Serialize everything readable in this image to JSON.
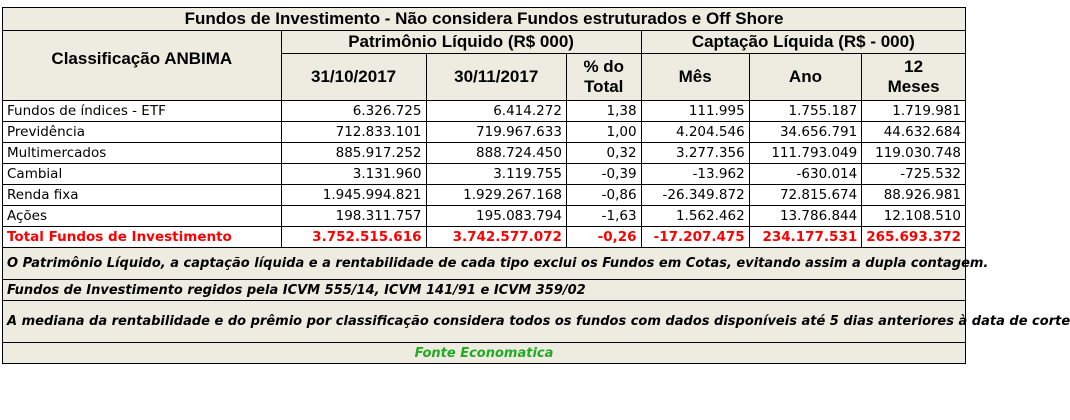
{
  "title": "Fundos de Investimento - Não considera Fundos estruturados e Off Shore",
  "header": {
    "classification_label": "Classificação ANBIMA",
    "pl_group": "Patrimônio Líquido (R$ 000)",
    "cap_group": "Captação Líquida (R$ - 000)",
    "col_date1": "31/10/2017",
    "col_date2": "30/11/2017",
    "col_pct_line1": "% do",
    "col_pct_line2": "Total",
    "col_mes": "Mês",
    "col_ano": "Ano",
    "col_12m_line1": "12",
    "col_12m_line2": "Meses"
  },
  "rows": [
    {
      "name": "Fundos de índices - ETF",
      "pl_oct": "6.326.725",
      "pl_nov": "6.414.272",
      "pct": "1,38",
      "mes": "111.995",
      "ano": "1.755.187",
      "m12": "1.719.981"
    },
    {
      "name": "Previdência",
      "pl_oct": "712.833.101",
      "pl_nov": "719.967.633",
      "pct": "1,00",
      "mes": "4.204.546",
      "ano": "34.656.791",
      "m12": "44.632.684"
    },
    {
      "name": "Multimercados",
      "pl_oct": "885.917.252",
      "pl_nov": "888.724.450",
      "pct": "0,32",
      "mes": "3.277.356",
      "ano": "111.793.049",
      "m12": "119.030.748"
    },
    {
      "name": "Cambial",
      "pl_oct": "3.131.960",
      "pl_nov": "3.119.755",
      "pct": "-0,39",
      "mes": "-13.962",
      "ano": "-630.014",
      "m12": "-725.532"
    },
    {
      "name": "Renda fixa",
      "pl_oct": "1.945.994.821",
      "pl_nov": "1.929.267.168",
      "pct": "-0,86",
      "mes": "-26.349.872",
      "ano": "72.815.674",
      "m12": "88.926.981"
    },
    {
      "name": "Ações",
      "pl_oct": "198.311.757",
      "pl_nov": "195.083.794",
      "pct": "-1,63",
      "mes": "1.562.462",
      "ano": "13.786.844",
      "m12": "12.108.510"
    }
  ],
  "total": {
    "name": "Total Fundos de Investimento",
    "pl_oct": "3.752.515.616",
    "pl_nov": "3.742.577.072",
    "pct": "-0,26",
    "mes": "-17.207.475",
    "ano": "234.177.531",
    "m12": "265.693.372"
  },
  "notes": {
    "note1": "O Patrimônio Líquido, a captação líquida e a rentabilidade de cada tipo exclui os Fundos em Cotas, evitando assim a dupla contagem.",
    "note2": "Fundos de Investimento regidos pela ICVM 555/14, ICVM 141/91 e ICVM 359/02",
    "note3": "A mediana da rentabilidade  e do prêmio por classificação considera todos os fundos com dados disponíveis até 5 dias anteriores à data de corte"
  },
  "source": "Fonte Economatica",
  "colors": {
    "total_text": "#ff0000",
    "source_text": "#22aa22",
    "header_bg": "#eeece1"
  }
}
